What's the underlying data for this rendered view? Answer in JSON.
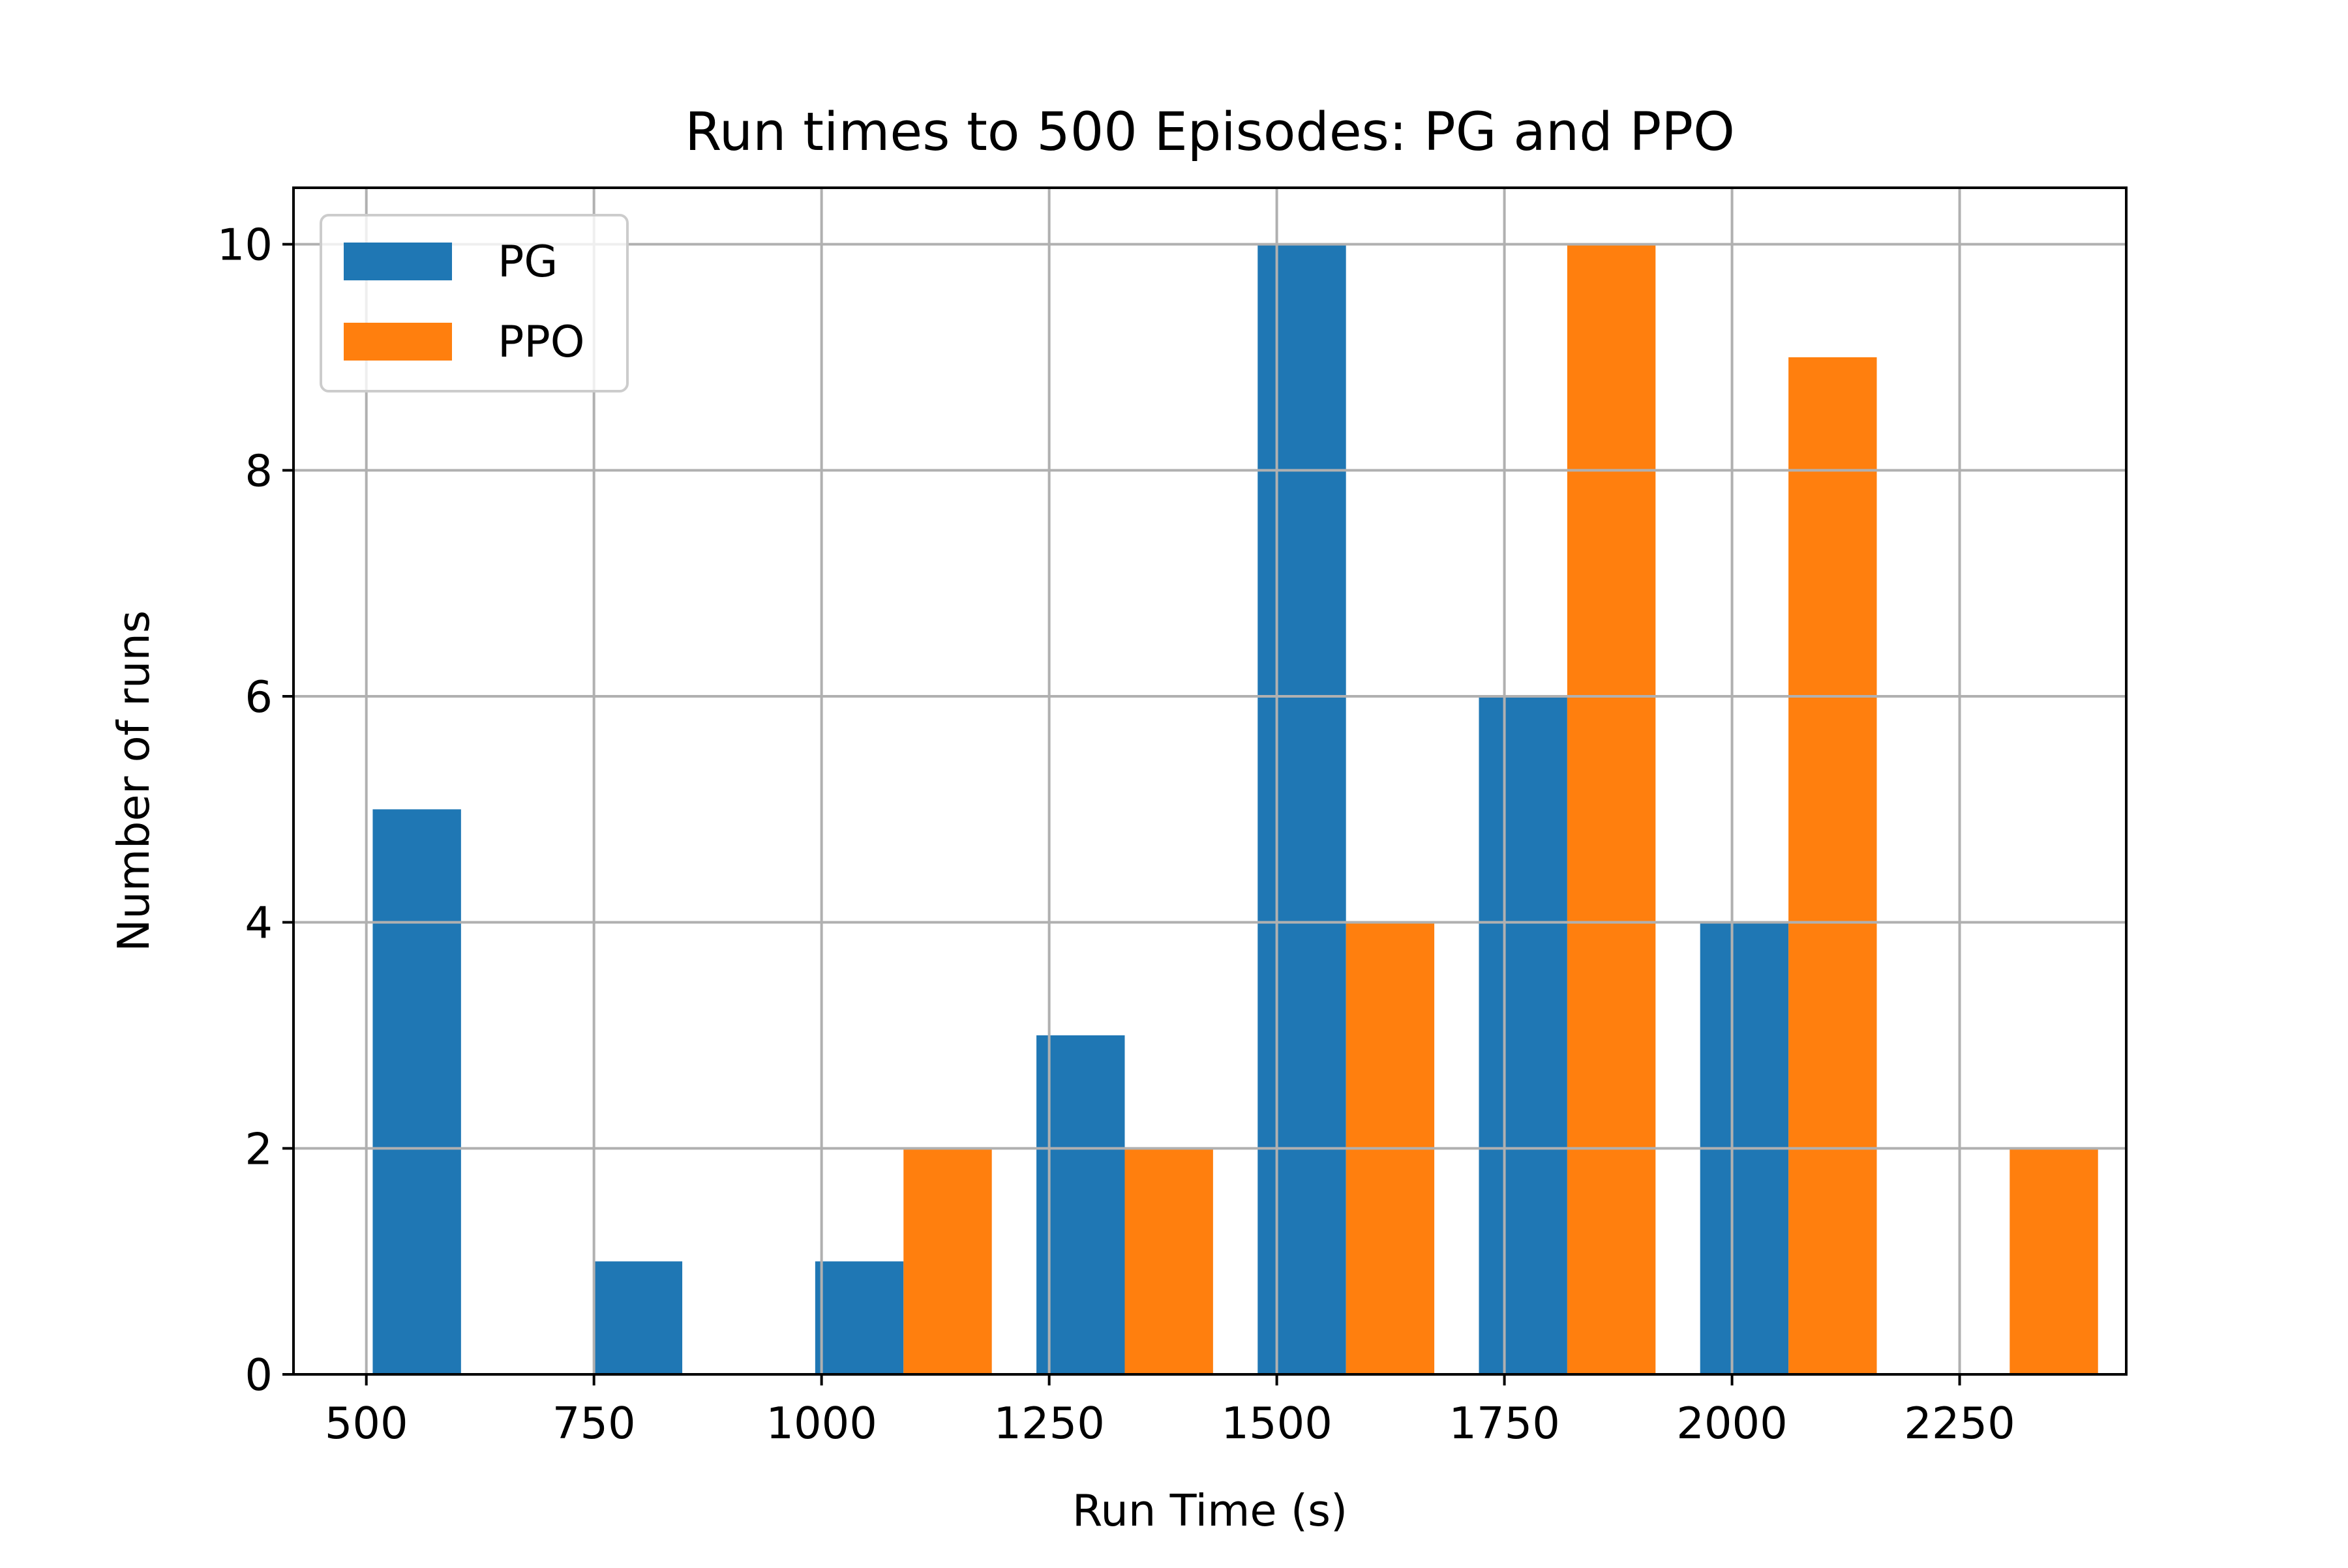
{
  "chart_data": {
    "type": "bar",
    "title": "Run times to 500 Episodes: PG and PPO",
    "xlabel": "Run Time (s)",
    "ylabel": "Number of runs",
    "xlim": [
      420,
      2433
    ],
    "ylim": [
      0,
      10.5
    ],
    "xticks": [
      500,
      750,
      1000,
      1250,
      1500,
      1750,
      2000,
      2250
    ],
    "yticks": [
      0,
      2,
      4,
      6,
      8,
      10
    ],
    "grid": true,
    "legend": "top-left",
    "bin_width": 97,
    "series": [
      {
        "name": "PG",
        "color": "#1f77b4",
        "bins": [
          {
            "x_start": 507,
            "x_end": 604,
            "value": 5
          },
          {
            "x_start": 750,
            "x_end": 847,
            "value": 1
          },
          {
            "x_start": 993,
            "x_end": 1090,
            "value": 1
          },
          {
            "x_start": 1236,
            "x_end": 1333,
            "value": 3
          },
          {
            "x_start": 1479,
            "x_end": 1576,
            "value": 10
          },
          {
            "x_start": 1722,
            "x_end": 1819,
            "value": 6
          },
          {
            "x_start": 1965,
            "x_end": 2062,
            "value": 4
          }
        ]
      },
      {
        "name": "PPO",
        "color": "#ff7f0e",
        "bins": [
          {
            "x_start": 1090,
            "x_end": 1187,
            "value": 2
          },
          {
            "x_start": 1333,
            "x_end": 1430,
            "value": 2
          },
          {
            "x_start": 1576,
            "x_end": 1673,
            "value": 4
          },
          {
            "x_start": 1819,
            "x_end": 1916,
            "value": 10
          },
          {
            "x_start": 2062,
            "x_end": 2159,
            "value": 9
          },
          {
            "x_start": 2305,
            "x_end": 2402,
            "value": 2
          }
        ]
      }
    ]
  }
}
